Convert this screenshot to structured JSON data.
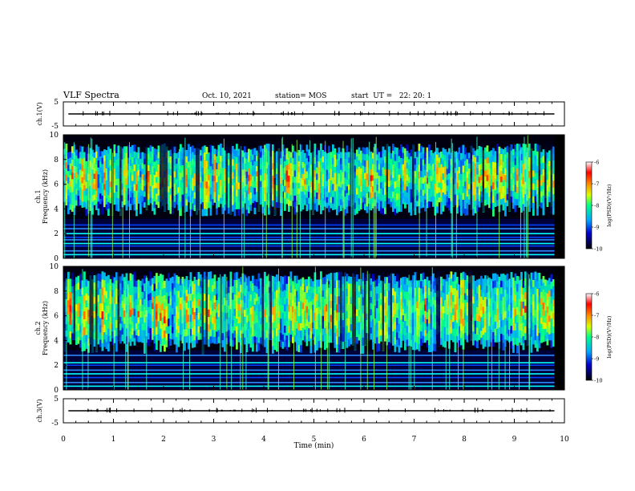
{
  "header": {
    "title": "VLF Spectra",
    "date": "Oct. 10, 2021",
    "station": "station= MOS",
    "start": "start  UT =   22: 20: 1"
  },
  "chart_data": [
    {
      "type": "line",
      "name": "ch1-voltage-panel",
      "ylabel": "ch.1(V)",
      "yticks": [
        5,
        -5
      ],
      "ylim": [
        -5,
        5
      ],
      "xlim": [
        0,
        10
      ],
      "baseline": 0
    },
    {
      "type": "heatmap",
      "name": "ch1-spectrogram",
      "ylabel": "ch.1\nFrequency (kHz)",
      "yticks": [
        0,
        2,
        4,
        6,
        8,
        10
      ],
      "ylim": [
        0,
        10
      ],
      "xlim": [
        0,
        10
      ],
      "colorbar": {
        "label": "log(PSD)(V²/Hz)",
        "ticks": [
          -6,
          -7,
          -8,
          -9,
          -10
        ],
        "range": [
          -10,
          -6
        ]
      },
      "band_khz": [
        4.0,
        9.3
      ],
      "lines_khz": [
        0.3,
        0.6,
        1.0,
        1.2,
        1.5,
        1.7,
        2.0,
        2.4,
        2.7
      ]
    },
    {
      "type": "heatmap",
      "name": "ch2-spectrogram",
      "ylabel": "ch.2\nFrequency (kHz)",
      "yticks": [
        0,
        2,
        4,
        6,
        8,
        10
      ],
      "ylim": [
        0,
        10
      ],
      "xlim": [
        0,
        10
      ],
      "colorbar": {
        "label": "log(PSD)(V²/Hz)",
        "ticks": [
          -6,
          -7,
          -8,
          -9,
          -10
        ],
        "range": [
          -10,
          -6
        ]
      },
      "band_khz": [
        3.5,
        9.6
      ],
      "lines_khz": [
        0.3,
        0.6,
        1.0,
        1.3,
        1.6,
        2.0,
        2.2,
        2.8
      ]
    },
    {
      "type": "line",
      "name": "ch3-voltage-panel",
      "ylabel": "ch.3(V)",
      "yticks": [
        5,
        -5
      ],
      "ylim": [
        -5,
        5
      ],
      "xlim": [
        0,
        10
      ],
      "baseline": 0
    }
  ],
  "xaxis": {
    "label": "Time  (min)",
    "ticks": [
      0,
      1,
      2,
      3,
      4,
      5,
      6,
      7,
      8,
      9,
      10
    ]
  }
}
